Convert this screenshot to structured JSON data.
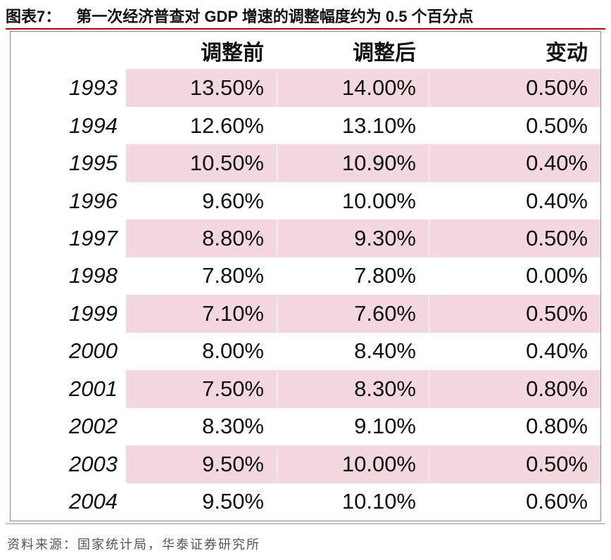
{
  "title": {
    "label": "图表7：",
    "text": "第一次经济普查对 GDP 增速的调整幅度约为 0.5 个百分点"
  },
  "chart_data": {
    "type": "table",
    "columns": [
      "",
      "调整前",
      "调整后",
      "变动"
    ],
    "rows": [
      {
        "year": "1993",
        "before": "13.50%",
        "after": "14.00%",
        "change": "0.50%"
      },
      {
        "year": "1994",
        "before": "12.60%",
        "after": "13.10%",
        "change": "0.50%"
      },
      {
        "year": "1995",
        "before": "10.50%",
        "after": "10.90%",
        "change": "0.40%"
      },
      {
        "year": "1996",
        "before": "9.60%",
        "after": "10.00%",
        "change": "0.40%"
      },
      {
        "year": "1997",
        "before": "8.80%",
        "after": "9.30%",
        "change": "0.50%"
      },
      {
        "year": "1998",
        "before": "7.80%",
        "after": "7.80%",
        "change": "0.00%"
      },
      {
        "year": "1999",
        "before": "7.10%",
        "after": "7.60%",
        "change": "0.50%"
      },
      {
        "year": "2000",
        "before": "8.00%",
        "after": "8.40%",
        "change": "0.40%"
      },
      {
        "year": "2001",
        "before": "7.50%",
        "after": "8.30%",
        "change": "0.80%"
      },
      {
        "year": "2002",
        "before": "8.30%",
        "after": "9.10%",
        "change": "0.80%"
      },
      {
        "year": "2003",
        "before": "9.50%",
        "after": "10.00%",
        "change": "0.50%"
      },
      {
        "year": "2004",
        "before": "9.50%",
        "after": "10.10%",
        "change": "0.60%"
      }
    ]
  },
  "footer": {
    "text": "资料来源：国家统计局，华泰证券研究所"
  },
  "colors": {
    "shade": "#f3d9df",
    "title_rule": "#b40000"
  }
}
